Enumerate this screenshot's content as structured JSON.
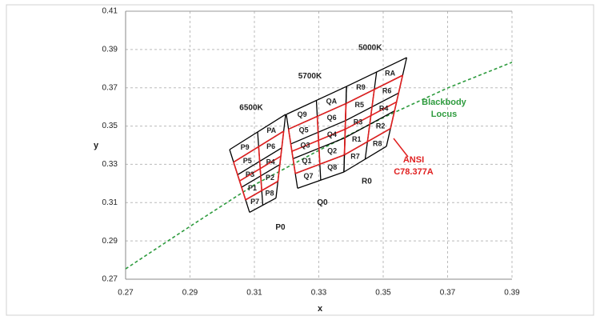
{
  "chart_data": {
    "type": "binning",
    "xlabel": "x",
    "ylabel": "y",
    "xlim": [
      0.27,
      0.39
    ],
    "ylim": [
      0.27,
      0.41
    ],
    "xticks": [
      0.27,
      0.29,
      0.31,
      0.33,
      0.35,
      0.37,
      0.39
    ],
    "yticks": [
      0.27,
      0.29,
      0.31,
      0.33,
      0.35,
      0.37,
      0.39,
      0.41
    ],
    "grid": true,
    "locus": {
      "name": [
        "Blackbody",
        "Locus"
      ],
      "color": "#2e9b3e",
      "x": [
        0.27,
        0.29,
        0.31,
        0.33,
        0.35,
        0.37,
        0.39
      ],
      "y": [
        0.2754,
        0.2976,
        0.3193,
        0.3373,
        0.3544,
        0.3699,
        0.3833
      ]
    },
    "ansi_label": [
      "ANSI",
      "C78.377A"
    ],
    "ansi_color": "#e02020",
    "groups": [
      {
        "name": "6500K",
        "outside": "P0",
        "corners": {
          "x": [
            0.3023,
            0.3197,
            0.3167,
            0.3085
          ],
          "y": [
            0.3377,
            0.3561,
            0.3124,
            0.3049
          ]
        },
        "bins": [
          "P9",
          "PA",
          "P5",
          "P6",
          "P3",
          "P4",
          "P1",
          "P2",
          "P7",
          "P8"
        ]
      },
      {
        "name": "5700K",
        "outside": "Q0",
        "corners": {
          "x": [
            0.3199,
            0.3386,
            0.3378,
            0.3234
          ],
          "y": [
            0.3561,
            0.3707,
            0.326,
            0.3175
          ]
        },
        "bins": [
          "Q9",
          "QA",
          "Q5",
          "Q6",
          "Q3",
          "Q4",
          "Q1",
          "Q2",
          "Q7",
          "Q8"
        ]
      },
      {
        "name": "5000K",
        "outside": "R0",
        "corners": {
          "x": [
            0.3386,
            0.3573,
            0.351,
            0.3378
          ],
          "y": [
            0.3707,
            0.3858,
            0.3394,
            0.326
          ]
        },
        "bins": [
          "R9",
          "RA",
          "R5",
          "R6",
          "R3",
          "R4",
          "R1",
          "R2",
          "R7",
          "R8"
        ]
      }
    ]
  }
}
